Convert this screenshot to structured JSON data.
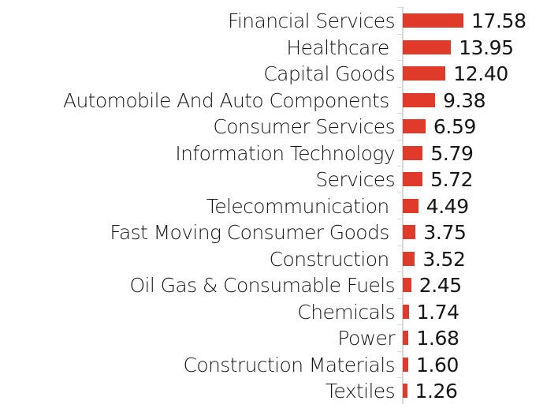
{
  "chart_data": {
    "type": "bar",
    "orientation": "horizontal",
    "title": "",
    "xlabel": "",
    "ylabel": "",
    "grid": false,
    "legend": null,
    "bar_color": "#e03a2a",
    "categories": [
      "Financial Services",
      "Healthcare",
      "Capital Goods",
      "Automobile And Auto Components",
      "Consumer Services",
      "Information Technology",
      "Services",
      "Telecommunication",
      "Fast Moving Consumer Goods",
      "Construction",
      "Oil Gas & Consumable Fuels",
      "Chemicals",
      "Power",
      "Construction Materials",
      "Textiles"
    ],
    "values": [
      17.58,
      13.95,
      12.4,
      9.38,
      6.59,
      5.79,
      5.72,
      4.49,
      3.75,
      3.52,
      2.45,
      1.74,
      1.68,
      1.6,
      1.26
    ],
    "value_labels": [
      "17.58",
      "13.95",
      "12.40",
      "9.38",
      "6.59",
      "5.79",
      "5.72",
      "4.49",
      "3.75",
      "3.52",
      "2.45",
      "1.74",
      "1.68",
      "1.60",
      "1.26"
    ],
    "xlim": [
      0,
      18
    ]
  },
  "rows": [
    {
      "label": "Financial Services",
      "value": "17.58",
      "num": 17.58
    },
    {
      "label": "Healthcare ",
      "value": "13.95",
      "num": 13.95
    },
    {
      "label": "Capital Goods",
      "value": "12.40",
      "num": 12.4
    },
    {
      "label": "Automobile And Auto Components ",
      "value": "9.38",
      "num": 9.38
    },
    {
      "label": "Consumer Services",
      "value": "6.59",
      "num": 6.59
    },
    {
      "label": "Information Technology",
      "value": "5.79",
      "num": 5.79
    },
    {
      "label": "Services",
      "value": "5.72",
      "num": 5.72
    },
    {
      "label": "Telecommunication ",
      "value": "4.49",
      "num": 4.49
    },
    {
      "label": "Fast Moving Consumer Goods ",
      "value": "3.75",
      "num": 3.75
    },
    {
      "label": "Construction ",
      "value": "3.52",
      "num": 3.52
    },
    {
      "label": "Oil Gas & Consumable Fuels",
      "value": "2.45",
      "num": 2.45
    },
    {
      "label": "Chemicals",
      "value": "1.74",
      "num": 1.74
    },
    {
      "label": "Power",
      "value": "1.68",
      "num": 1.68
    },
    {
      "label": "Construction Materials",
      "value": "1.60",
      "num": 1.6
    },
    {
      "label": "Textiles",
      "value": "1.26",
      "num": 1.26
    }
  ]
}
